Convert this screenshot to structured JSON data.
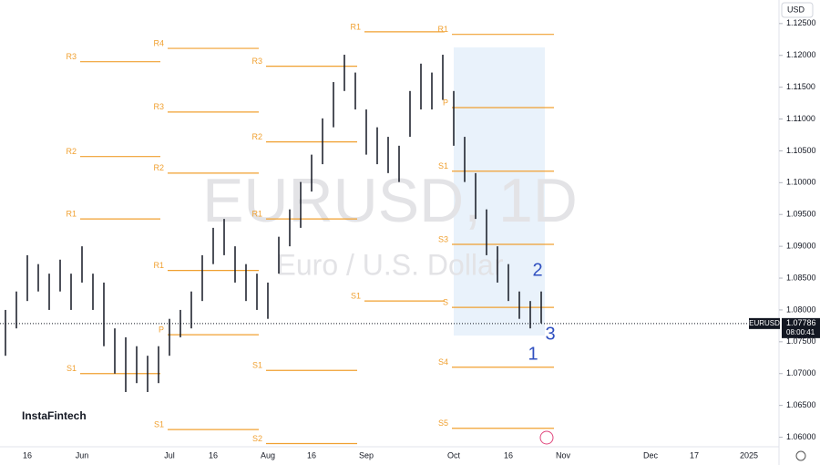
{
  "chart_data": {
    "type": "ohlc",
    "title": "EURUSD, 1D",
    "subtitle": "Euro / U.S. Dollar",
    "brand": "InstaFintech",
    "currency": "USD",
    "annotations": [
      "1",
      "2",
      "3"
    ],
    "categories": [
      null,
      null,
      "16",
      null,
      null,
      null,
      null,
      "Jun",
      null,
      null,
      null,
      null,
      null,
      null,
      null,
      "Jul",
      null,
      null,
      null,
      "16",
      null,
      null,
      null,
      null,
      "Aug",
      null,
      null,
      null,
      "16",
      null,
      null,
      null,
      null,
      "Sep",
      null,
      null,
      null,
      null,
      null,
      null,
      null,
      "Oct",
      null,
      null,
      null,
      null,
      "16",
      null,
      null,
      null,
      null,
      "Nov",
      null,
      null,
      null,
      null,
      null,
      null,
      null,
      "Dec",
      null,
      null,
      null,
      "17",
      null,
      null,
      null,
      null,
      "2025",
      null,
      null
    ],
    "series": [
      {
        "name": "high",
        "color": "#131722",
        "values": [
          1.08,
          1.0829,
          1.0886,
          1.0872,
          1.0857,
          1.0879,
          1.0857,
          1.09,
          1.0857,
          1.0843,
          1.0771,
          1.0757,
          1.0743,
          1.0728,
          1.0743,
          1.0786,
          1.08,
          1.0829,
          1.0886,
          1.0929,
          1.0943,
          1.09,
          1.0872,
          1.0857,
          1.0843,
          1.0915,
          1.0958,
          1.1001,
          1.1044,
          1.1101,
          1.1158,
          1.1201,
          1.1173,
          1.1115,
          1.1087,
          1.1072,
          1.1058,
          1.1144,
          1.1187,
          1.1173,
          1.1201,
          1.1144,
          1.1072,
          1.1015,
          1.0958,
          1.09,
          1.0872,
          1.0829,
          1.0814,
          1.0829,
          null,
          null,
          null,
          null,
          null,
          null,
          null,
          null,
          null,
          null,
          null,
          null,
          null,
          null,
          null,
          null,
          null,
          null,
          null,
          null,
          null
        ]
      },
      {
        "name": "low",
        "color": "#131722",
        "values": [
          1.0728,
          1.0771,
          1.0814,
          1.0829,
          1.08,
          1.0829,
          1.08,
          1.0843,
          1.08,
          1.0743,
          1.07,
          1.0671,
          1.0685,
          1.0671,
          1.0685,
          1.0728,
          1.0757,
          1.0771,
          1.0814,
          1.0872,
          1.0886,
          1.0843,
          1.0814,
          1.08,
          1.0786,
          1.0857,
          1.09,
          1.0929,
          1.0986,
          1.1029,
          1.1087,
          1.1144,
          1.1115,
          1.1044,
          1.1029,
          1.1015,
          1.1001,
          1.1072,
          1.1115,
          1.1115,
          1.113,
          1.1058,
          1.1001,
          1.0943,
          1.0886,
          1.0843,
          1.0814,
          1.0786,
          1.0771,
          1.0779,
          null,
          null,
          null,
          null,
          null,
          null,
          null,
          null,
          null,
          null,
          null,
          null,
          null,
          null,
          null,
          null,
          null,
          null,
          null,
          null,
          null
        ]
      }
    ],
    "pivots": [
      {
        "label": "R3",
        "value": 1.119,
        "from": 7,
        "to": 15,
        "color": "#f0a030"
      },
      {
        "label": "R2",
        "value": 1.1041,
        "from": 7,
        "to": 15,
        "color": "#f0a030"
      },
      {
        "label": "R1",
        "value": 1.0943,
        "from": 7,
        "to": 15,
        "color": "#f0a030"
      },
      {
        "label": "S1",
        "value": 1.07,
        "from": 7,
        "to": 15,
        "color": "#f0a030"
      },
      {
        "label": "R4",
        "value": 1.1211,
        "from": 15,
        "to": 24,
        "color": "#f0a030"
      },
      {
        "label": "R3",
        "value": 1.1111,
        "from": 15,
        "to": 24,
        "color": "#f0a030"
      },
      {
        "label": "R2",
        "value": 1.1015,
        "from": 15,
        "to": 24,
        "color": "#f0a030"
      },
      {
        "label": "R1",
        "value": 1.0862,
        "from": 15,
        "to": 24,
        "color": "#f0a030"
      },
      {
        "label": "P",
        "value": 1.0761,
        "from": 15,
        "to": 24,
        "color": "#f0a030"
      },
      {
        "label": "S1",
        "value": 1.0612,
        "from": 15,
        "to": 24,
        "color": "#f0a030"
      },
      {
        "label": "R3",
        "value": 1.1183,
        "from": 24,
        "to": 33,
        "color": "#f0a030"
      },
      {
        "label": "R2",
        "value": 1.1064,
        "from": 24,
        "to": 33,
        "color": "#f0a030"
      },
      {
        "label": "R1",
        "value": 1.0943,
        "from": 24,
        "to": 33,
        "color": "#f0a030"
      },
      {
        "label": "S1",
        "value": 1.0705,
        "from": 24,
        "to": 33,
        "color": "#f0a030"
      },
      {
        "label": "S2",
        "value": 1.059,
        "from": 24,
        "to": 33,
        "color": "#f0a030"
      },
      {
        "label": "R1",
        "value": 1.1237,
        "from": 33,
        "to": 41,
        "color": "#f0a030"
      },
      {
        "label": "S1",
        "value": 1.0814,
        "from": 33,
        "to": 41,
        "color": "#f0a030"
      },
      {
        "label": "R1",
        "value": 1.1233,
        "from": 41,
        "to": 51,
        "color": "#f0a030"
      },
      {
        "label": "P",
        "value": 1.1118,
        "from": 41,
        "to": 51,
        "color": "#f0a030"
      },
      {
        "label": "S1",
        "value": 1.1018,
        "from": 41,
        "to": 51,
        "color": "#f0a030"
      },
      {
        "label": "S3",
        "value": 1.0903,
        "from": 41,
        "to": 51,
        "color": "#f0a030"
      },
      {
        "label": "S",
        "value": 1.0804,
        "from": 41,
        "to": 51,
        "color": "#f0a030"
      },
      {
        "label": "S4",
        "value": 1.071,
        "from": 41,
        "to": 51,
        "color": "#f0a030"
      },
      {
        "label": "S5",
        "value": 1.0614,
        "from": 41,
        "to": 51,
        "color": "#f0a030"
      }
    ],
    "last_price": {
      "symbol": "EURUSD",
      "value": 1.07786,
      "label": "1.07786",
      "countdown": "08:00:41"
    },
    "ylim": [
      1.0585,
      1.1287
    ],
    "yticks": [
      {
        "value": 1.125,
        "label": "1.12500"
      },
      {
        "value": 1.12,
        "label": "1.12000"
      },
      {
        "value": 1.115,
        "label": "1.11500"
      },
      {
        "value": 1.11,
        "label": "1.11000"
      },
      {
        "value": 1.105,
        "label": "1.10500"
      },
      {
        "value": 1.1,
        "label": "1.10000"
      },
      {
        "value": 1.095,
        "label": "1.09500"
      },
      {
        "value": 1.09,
        "label": "1.09000"
      },
      {
        "value": 1.085,
        "label": "1.08500"
      },
      {
        "value": 1.08,
        "label": "1.08000"
      },
      {
        "value": 1.075,
        "label": "1.07500"
      },
      {
        "value": 1.07,
        "label": "1.07000"
      },
      {
        "value": 1.065,
        "label": "1.06500"
      },
      {
        "value": 1.06,
        "label": "1.06000"
      }
    ],
    "grid": false
  }
}
